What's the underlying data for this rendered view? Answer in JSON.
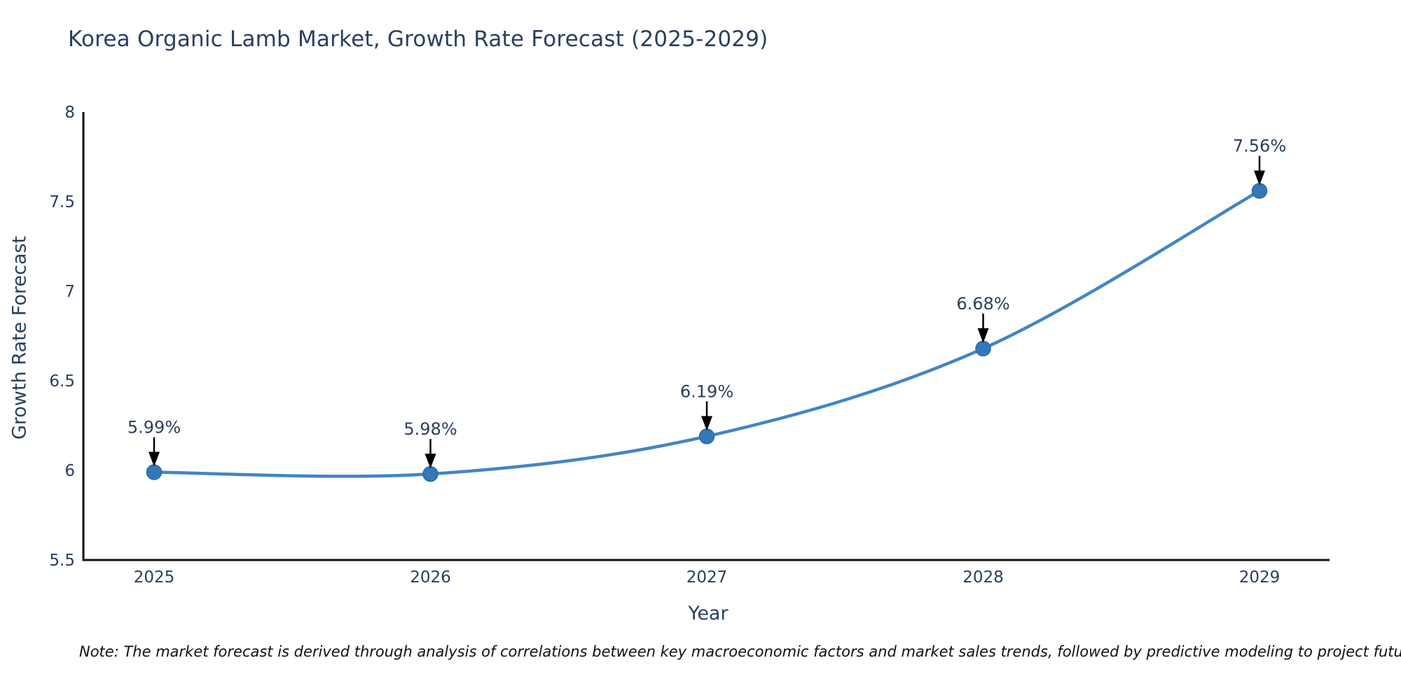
{
  "chart_data": {
    "type": "line",
    "title": "Korea Organic Lamb Market, Growth Rate Forecast (2025-2029)",
    "xlabel": "Year",
    "ylabel": "Growth Rate Forecast",
    "x": [
      2025,
      2026,
      2027,
      2028,
      2029
    ],
    "values": [
      5.99,
      5.98,
      6.19,
      6.68,
      7.56
    ],
    "point_labels": [
      "5.99%",
      "5.98%",
      "6.19%",
      "6.68%",
      "7.56%"
    ],
    "ylim": [
      5.5,
      8
    ],
    "yticks": [
      5.5,
      6,
      6.5,
      7,
      7.5,
      8
    ],
    "grid": false,
    "legend_position": "none",
    "line_color": "#4285c4",
    "marker_color": "#3478b8",
    "marker_edge_color": "#2a6aa5",
    "annotation_arrow_color": "#000000",
    "axis_line_color": "#111111",
    "text_color": "#2a3f5f",
    "background_color": "#ffffff"
  },
  "note": "Note: The market forecast is derived through analysis of correlations between key macroeconomic factors and market sales trends, followed by predictive modeling to project future sales"
}
